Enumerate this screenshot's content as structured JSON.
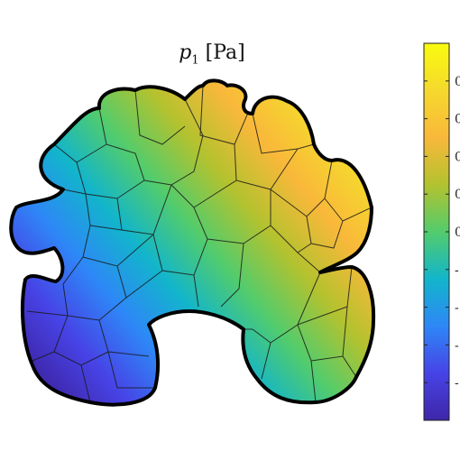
{
  "chart_data": {
    "type": "heatmap",
    "title": {
      "symbol": "p",
      "subscript": "1",
      "unit": "[Pa]"
    },
    "colormap": [
      "#3e26a8",
      "#4743e6",
      "#2e87f7",
      "#12b5cb",
      "#53cc6c",
      "#b3c22f",
      "#f9b83a",
      "#f5d92d",
      "#f9fb0e"
    ],
    "colorbar": {
      "tick_labels": [
        "0",
        "0",
        "0",
        "0",
        "0",
        "-",
        "-",
        "-",
        "-"
      ],
      "tick_fractions": [
        0.9,
        0.8,
        0.7,
        0.6,
        0.5,
        0.4,
        0.3,
        0.2,
        0.1
      ]
    },
    "field": {
      "description_low": "dark blue in lower-left lobe",
      "high_region": "upper and right lobes yellow",
      "note": "values increase from lower-left (low) to upper-right (high)"
    }
  }
}
